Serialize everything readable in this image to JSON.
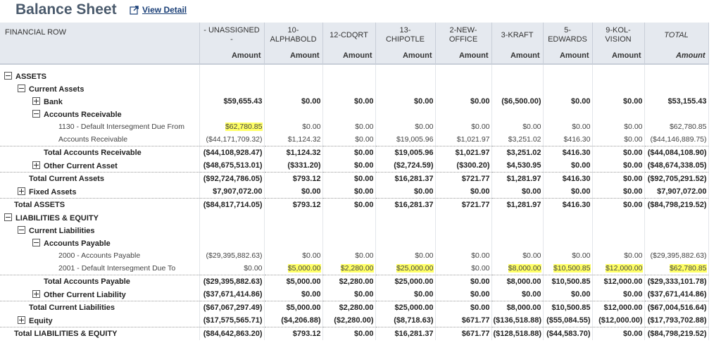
{
  "page": {
    "title": "Balance Sheet",
    "view_detail": "View Detail"
  },
  "columns": {
    "financial_row": "FINANCIAL ROW",
    "heads": [
      "- UNASSIGNED -",
      "10-ALPHABOLD",
      "12-CDQRT",
      "13-\nCHIPOTLE",
      "2-NEW-OFFICE",
      "3-KRAFT",
      "5-EDWARDS",
      "9-KOL-VISION",
      "TOTAL"
    ],
    "amount": "Amount"
  },
  "rows": [
    {
      "label": "ASSETS",
      "icon": "minus",
      "level": 0,
      "bold": true,
      "values": []
    },
    {
      "label": "Current Assets",
      "icon": "minus",
      "level": 1,
      "bold": true,
      "values": []
    },
    {
      "label": "Bank",
      "icon": "plus",
      "level": 2,
      "bold": true,
      "values": [
        "$59,655.43",
        "$0.00",
        "$0.00",
        "$0.00",
        "$0.00",
        "($6,500.00)",
        "$0.00",
        "$0.00",
        "$53,155.43"
      ]
    },
    {
      "label": "Accounts Receivable",
      "icon": "minus",
      "level": 2,
      "bold": true,
      "values": []
    },
    {
      "label": "1130 - Default Intersegment Due From",
      "icon": "",
      "level": 3,
      "bold": false,
      "small": true,
      "values": [
        "$62,780.85",
        "$0.00",
        "$0.00",
        "$0.00",
        "$0.00",
        "$0.00",
        "$0.00",
        "$0.00",
        "$62,780.85"
      ],
      "hl": [
        0
      ]
    },
    {
      "label": "Accounts Receivable",
      "icon": "",
      "level": 3,
      "bold": false,
      "small": true,
      "values": [
        "($44,171,709.32)",
        "$1,124.32",
        "$0.00",
        "$19,005.96",
        "$1,021.97",
        "$3,251.02",
        "$416.30",
        "$0.00",
        "($44,146,889.75)"
      ]
    },
    {
      "label": "Total Accounts Receivable",
      "icon": "",
      "level": "t3",
      "bold": true,
      "dot": true,
      "values": [
        "($44,108,928.47)",
        "$1,124.32",
        "$0.00",
        "$19,005.96",
        "$1,021.97",
        "$3,251.02",
        "$416.30",
        "$0.00",
        "($44,084,108.90)"
      ]
    },
    {
      "label": "Other Current Asset",
      "icon": "plus",
      "level": 2,
      "bold": true,
      "values": [
        "($48,675,513.01)",
        "($331.20)",
        "$0.00",
        "($2,724.59)",
        "($300.20)",
        "$4,530.95",
        "$0.00",
        "$0.00",
        "($48,674,338.05)"
      ]
    },
    {
      "label": "Total Current Assets",
      "icon": "",
      "level": "t2",
      "bold": true,
      "dot": true,
      "values": [
        "($92,724,786.05)",
        "$793.12",
        "$0.00",
        "$16,281.37",
        "$721.77",
        "$1,281.97",
        "$416.30",
        "$0.00",
        "($92,705,291.52)"
      ]
    },
    {
      "label": "Fixed Assets",
      "icon": "plus",
      "level": 1,
      "bold": true,
      "values": [
        "$7,907,072.00",
        "$0.00",
        "$0.00",
        "$0.00",
        "$0.00",
        "$0.00",
        "$0.00",
        "$0.00",
        "$7,907,072.00"
      ]
    },
    {
      "label": "Total ASSETS",
      "icon": "",
      "level": "t1",
      "bold": true,
      "dot": true,
      "values": [
        "($84,817,714.05)",
        "$793.12",
        "$0.00",
        "$16,281.37",
        "$721.77",
        "$1,281.97",
        "$416.30",
        "$0.00",
        "($84,798,219.52)"
      ]
    },
    {
      "label": "LIABILITIES & EQUITY",
      "icon": "minus",
      "level": 0,
      "bold": true,
      "values": []
    },
    {
      "label": "Current Liabilities",
      "icon": "minus",
      "level": 1,
      "bold": true,
      "values": []
    },
    {
      "label": "Accounts Payable",
      "icon": "minus",
      "level": 2,
      "bold": true,
      "values": []
    },
    {
      "label": "2000 - Accounts Payable",
      "icon": "",
      "level": 3,
      "bold": false,
      "small": true,
      "values": [
        "($29,395,882.63)",
        "$0.00",
        "$0.00",
        "$0.00",
        "$0.00",
        "$0.00",
        "$0.00",
        "$0.00",
        "($29,395,882.63)"
      ]
    },
    {
      "label": "2001 - Default Intersegment Due To",
      "icon": "",
      "level": 3,
      "bold": false,
      "small": true,
      "values": [
        "$0.00",
        "$5,000.00",
        "$2,280.00",
        "$25,000.00",
        "$0.00",
        "$8,000.00",
        "$10,500.85",
        "$12,000.00",
        "$62,780.85"
      ],
      "hl": [
        1,
        2,
        3,
        5,
        6,
        7,
        8
      ]
    },
    {
      "label": "Total Accounts Payable",
      "icon": "",
      "level": "t3",
      "bold": true,
      "dot": true,
      "values": [
        "($29,395,882.63)",
        "$5,000.00",
        "$2,280.00",
        "$25,000.00",
        "$0.00",
        "$8,000.00",
        "$10,500.85",
        "$12,000.00",
        "($29,333,101.78)"
      ]
    },
    {
      "label": "Other Current Liability",
      "icon": "plus",
      "level": 2,
      "bold": true,
      "values": [
        "($37,671,414.86)",
        "$0.00",
        "$0.00",
        "$0.00",
        "$0.00",
        "$0.00",
        "$0.00",
        "$0.00",
        "($37,671,414.86)"
      ]
    },
    {
      "label": "Total Current Liabilities",
      "icon": "",
      "level": "t2",
      "bold": true,
      "dot": true,
      "values": [
        "($67,067,297.49)",
        "$5,000.00",
        "$2,280.00",
        "$25,000.00",
        "$0.00",
        "$8,000.00",
        "$10,500.85",
        "$12,000.00",
        "($67,004,516.64)"
      ]
    },
    {
      "label": "Equity",
      "icon": "plus",
      "level": 1,
      "bold": true,
      "values": [
        "($17,575,565.71)",
        "($4,206.88)",
        "($2,280.00)",
        "($8,718.63)",
        "$671.77",
        "($136,518.88)",
        "($55,084.55)",
        "($12,000.00)",
        "($17,793,702.88)"
      ]
    },
    {
      "label": "Total LIABILITIES & EQUITY",
      "icon": "",
      "level": "t1",
      "bold": true,
      "dot": true,
      "values": [
        "($84,642,863.20)",
        "$793.12",
        "$0.00",
        "$16,281.37",
        "$671.77",
        "($128,518.88)",
        "($44,583.70)",
        "$0.00",
        "($84,798,219.52)"
      ]
    }
  ]
}
